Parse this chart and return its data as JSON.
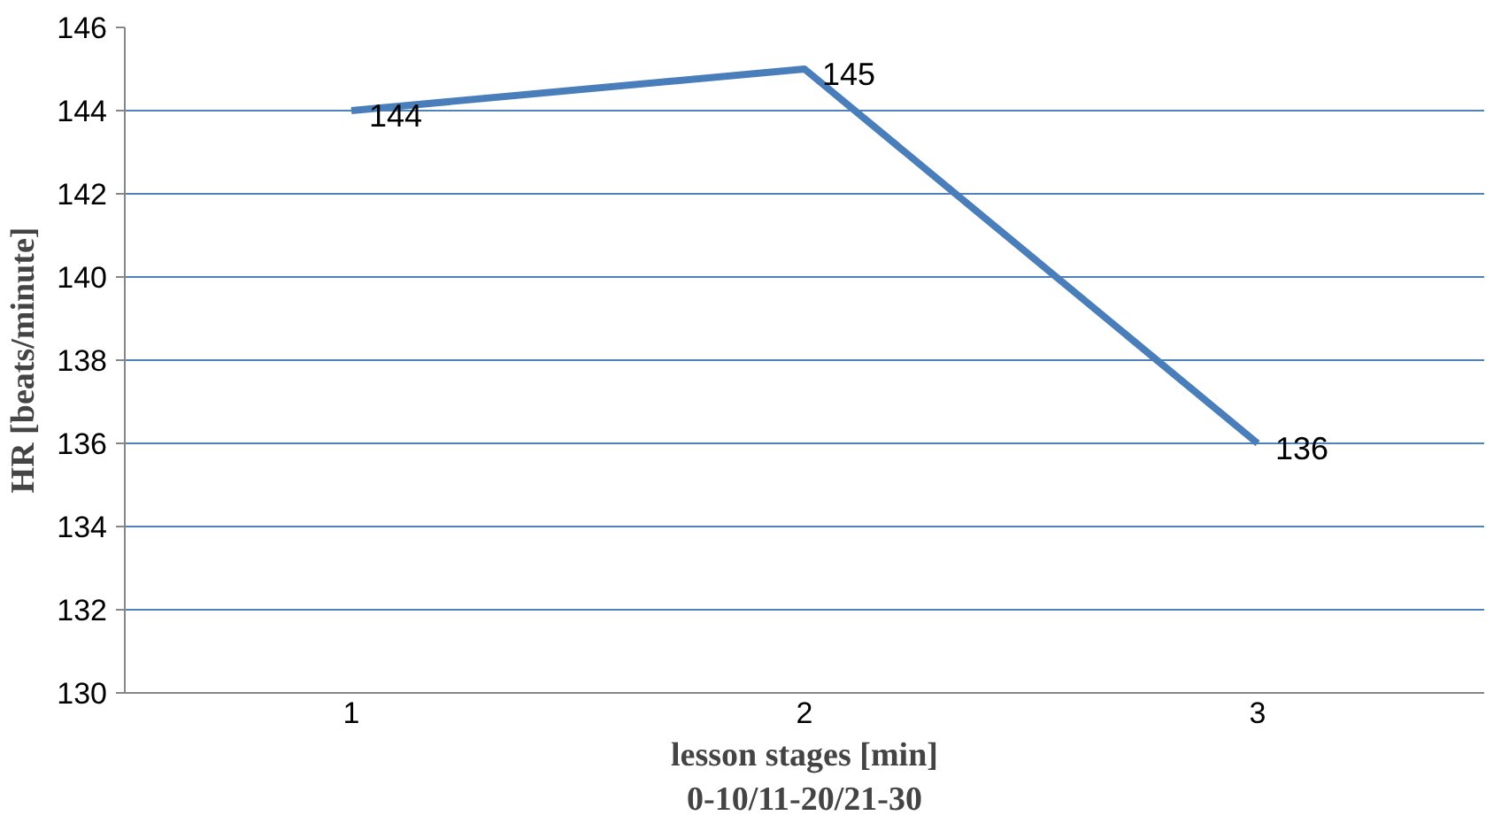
{
  "chart_data": {
    "type": "line",
    "xlabel": "lesson stages [min]\n0-10/11-20/21-30",
    "ylabel": "HR [beats/minute]",
    "categories": [
      "1",
      "2",
      "3"
    ],
    "series": [
      {
        "color": "#4a7ebb",
        "values": [
          144,
          145,
          136
        ]
      }
    ],
    "ylim": [
      130,
      146
    ],
    "yticks": [
      130,
      132,
      134,
      136,
      138,
      140,
      142,
      144,
      146
    ],
    "grid": "y",
    "data_labels": true,
    "marker": "none",
    "line_style": "solid"
  }
}
